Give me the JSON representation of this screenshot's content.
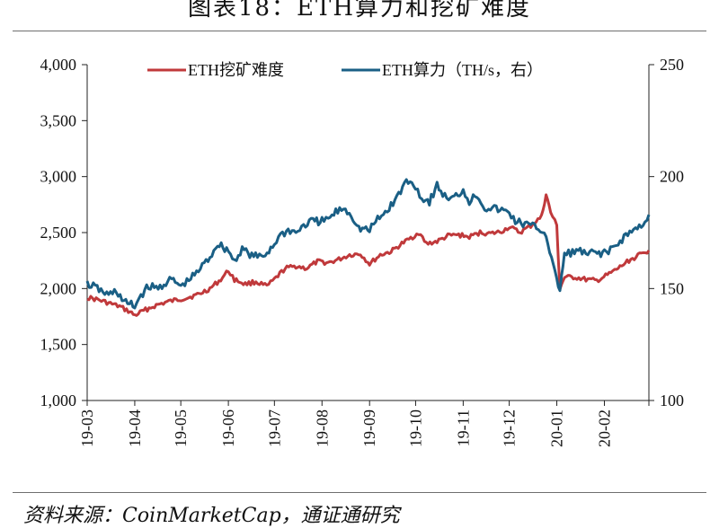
{
  "title": "图表18：ETH算力和挖矿难度",
  "source": "资料来源：CoinMarketCap，通证通研究",
  "colors": {
    "difficulty": "#c0393b",
    "hashrate": "#1a5f85",
    "axis": "#222222"
  },
  "chart_data": {
    "type": "line",
    "x_tick_labels": [
      "19-03",
      "19-04",
      "19-05",
      "19-06",
      "19-07",
      "19-08",
      "19-09",
      "19-10",
      "19-11",
      "19-12",
      "20-01",
      "20-02"
    ],
    "x_range": [
      "2019-03-01",
      "2020-03-01"
    ],
    "y_left": {
      "ylim": [
        1000,
        4000
      ],
      "ticks": [
        "1,000",
        "1,500",
        "2,000",
        "2,500",
        "3,000",
        "3,500",
        "4,000"
      ]
    },
    "y_right": {
      "ylim": [
        100,
        250
      ],
      "ticks": [
        "100",
        "150",
        "200",
        "250"
      ]
    },
    "legend_position": "top",
    "series": [
      {
        "name": "ETH挖矿难度",
        "axis": "left",
        "points": [
          [
            "2019-03-01",
            1920
          ],
          [
            "2019-03-08",
            1900
          ],
          [
            "2019-03-15",
            1870
          ],
          [
            "2019-03-22",
            1840
          ],
          [
            "2019-03-29",
            1790
          ],
          [
            "2019-04-01",
            1760
          ],
          [
            "2019-04-08",
            1810
          ],
          [
            "2019-04-15",
            1850
          ],
          [
            "2019-04-22",
            1880
          ],
          [
            "2019-04-29",
            1900
          ],
          [
            "2019-05-06",
            1920
          ],
          [
            "2019-05-13",
            1950
          ],
          [
            "2019-05-20",
            2000
          ],
          [
            "2019-05-27",
            2080
          ],
          [
            "2019-06-01",
            2160
          ],
          [
            "2019-06-05",
            2080
          ],
          [
            "2019-06-12",
            2040
          ],
          [
            "2019-06-19",
            2060
          ],
          [
            "2019-06-26",
            2020
          ],
          [
            "2019-07-01",
            2080
          ],
          [
            "2019-07-08",
            2180
          ],
          [
            "2019-07-15",
            2200
          ],
          [
            "2019-07-22",
            2180
          ],
          [
            "2019-07-29",
            2240
          ],
          [
            "2019-08-05",
            2230
          ],
          [
            "2019-08-12",
            2260
          ],
          [
            "2019-08-19",
            2300
          ],
          [
            "2019-08-26",
            2310
          ],
          [
            "2019-09-01",
            2220
          ],
          [
            "2019-09-08",
            2300
          ],
          [
            "2019-09-15",
            2330
          ],
          [
            "2019-09-22",
            2400
          ],
          [
            "2019-09-29",
            2460
          ],
          [
            "2019-10-03",
            2500
          ],
          [
            "2019-10-08",
            2400
          ],
          [
            "2019-10-15",
            2420
          ],
          [
            "2019-10-22",
            2470
          ],
          [
            "2019-10-29",
            2480
          ],
          [
            "2019-11-05",
            2460
          ],
          [
            "2019-11-12",
            2500
          ],
          [
            "2019-11-19",
            2490
          ],
          [
            "2019-11-26",
            2510
          ],
          [
            "2019-12-01",
            2550
          ],
          [
            "2019-12-08",
            2500
          ],
          [
            "2019-12-15",
            2560
          ],
          [
            "2019-12-22",
            2640
          ],
          [
            "2019-12-25",
            2840
          ],
          [
            "2019-12-28",
            2680
          ],
          [
            "2020-01-01",
            2560
          ],
          [
            "2020-01-03",
            2000
          ],
          [
            "2020-01-06",
            2100
          ],
          [
            "2020-01-13",
            2100
          ],
          [
            "2020-01-20",
            2080
          ],
          [
            "2020-01-27",
            2070
          ],
          [
            "2020-02-03",
            2120
          ],
          [
            "2020-02-10",
            2180
          ],
          [
            "2020-02-17",
            2250
          ],
          [
            "2020-02-24",
            2300
          ],
          [
            "2020-03-01",
            2340
          ]
        ]
      },
      {
        "name": "ETH算力（TH/s，右）",
        "axis": "right",
        "points": [
          [
            "2019-03-01",
            152
          ],
          [
            "2019-03-05",
            151
          ],
          [
            "2019-03-10",
            149
          ],
          [
            "2019-03-15",
            147
          ],
          [
            "2019-03-20",
            149
          ],
          [
            "2019-03-25",
            144
          ],
          [
            "2019-04-01",
            142
          ],
          [
            "2019-04-05",
            147
          ],
          [
            "2019-04-10",
            151
          ],
          [
            "2019-04-15",
            150
          ],
          [
            "2019-04-20",
            152
          ],
          [
            "2019-04-25",
            154
          ],
          [
            "2019-05-01",
            151
          ],
          [
            "2019-05-05",
            153
          ],
          [
            "2019-05-10",
            156
          ],
          [
            "2019-05-15",
            160
          ],
          [
            "2019-05-20",
            164
          ],
          [
            "2019-05-25",
            170
          ],
          [
            "2019-06-01",
            167
          ],
          [
            "2019-06-05",
            162
          ],
          [
            "2019-06-10",
            168
          ],
          [
            "2019-06-15",
            165
          ],
          [
            "2019-06-20",
            164
          ],
          [
            "2019-06-25",
            165
          ],
          [
            "2019-07-01",
            170
          ],
          [
            "2019-07-05",
            174
          ],
          [
            "2019-07-10",
            176
          ],
          [
            "2019-07-15",
            175
          ],
          [
            "2019-07-20",
            178
          ],
          [
            "2019-07-25",
            180
          ],
          [
            "2019-08-01",
            180
          ],
          [
            "2019-08-05",
            181
          ],
          [
            "2019-08-10",
            184
          ],
          [
            "2019-08-15",
            186
          ],
          [
            "2019-08-20",
            183
          ],
          [
            "2019-08-25",
            177
          ],
          [
            "2019-09-01",
            176
          ],
          [
            "2019-09-05",
            180
          ],
          [
            "2019-09-10",
            183
          ],
          [
            "2019-09-15",
            187
          ],
          [
            "2019-09-20",
            192
          ],
          [
            "2019-09-25",
            198
          ],
          [
            "2019-10-01",
            196
          ],
          [
            "2019-10-05",
            190
          ],
          [
            "2019-10-10",
            189
          ],
          [
            "2019-10-15",
            196
          ],
          [
            "2019-10-20",
            191
          ],
          [
            "2019-10-25",
            190
          ],
          [
            "2019-11-01",
            194
          ],
          [
            "2019-11-05",
            189
          ],
          [
            "2019-11-10",
            192
          ],
          [
            "2019-11-15",
            186
          ],
          [
            "2019-11-20",
            186
          ],
          [
            "2019-11-25",
            185
          ],
          [
            "2019-12-01",
            184
          ],
          [
            "2019-12-05",
            180
          ],
          [
            "2019-12-10",
            179
          ],
          [
            "2019-12-15",
            178
          ],
          [
            "2019-12-20",
            177
          ],
          [
            "2019-12-25",
            174
          ],
          [
            "2020-01-01",
            153
          ],
          [
            "2020-01-03",
            150
          ],
          [
            "2020-01-06",
            165
          ],
          [
            "2020-01-10",
            166
          ],
          [
            "2020-01-15",
            167
          ],
          [
            "2020-01-20",
            165
          ],
          [
            "2020-01-25",
            166
          ],
          [
            "2020-02-01",
            166
          ],
          [
            "2020-02-05",
            167
          ],
          [
            "2020-02-10",
            170
          ],
          [
            "2020-02-15",
            174
          ],
          [
            "2020-02-20",
            176
          ],
          [
            "2020-02-25",
            178
          ],
          [
            "2020-03-01",
            183
          ]
        ]
      }
    ]
  }
}
